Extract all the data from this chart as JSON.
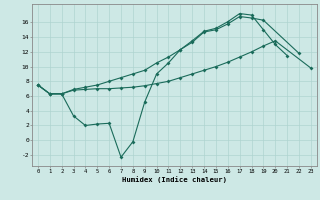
{
  "xlabel": "Humidex (Indice chaleur)",
  "background_color": "#cde8e5",
  "line_color": "#1a6b5a",
  "grid_color": "#afd4d0",
  "xlim": [
    -0.5,
    23.5
  ],
  "ylim": [
    -3.5,
    18.5
  ],
  "xticks": [
    0,
    1,
    2,
    3,
    4,
    5,
    6,
    7,
    8,
    9,
    10,
    11,
    12,
    13,
    14,
    15,
    16,
    17,
    18,
    19,
    20,
    21,
    22,
    23
  ],
  "yticks": [
    -2,
    0,
    2,
    4,
    6,
    8,
    10,
    12,
    14,
    16
  ],
  "line1_x": [
    0,
    1,
    2,
    3,
    4,
    5,
    6,
    7,
    8,
    9,
    10,
    11,
    12,
    13,
    14,
    15,
    16,
    17,
    18,
    19,
    20,
    21
  ],
  "line1_y": [
    7.5,
    6.3,
    6.3,
    3.3,
    2.0,
    2.2,
    2.3,
    -2.3,
    -0.2,
    5.2,
    9.0,
    10.5,
    12.3,
    13.5,
    14.8,
    15.2,
    16.1,
    17.2,
    17.0,
    15.0,
    13.0,
    11.5
  ],
  "line2_x": [
    0,
    1,
    2,
    3,
    4,
    5,
    6,
    7,
    8,
    9,
    10,
    11,
    12,
    13,
    14,
    15,
    16,
    17,
    18,
    19,
    20,
    23
  ],
  "line2_y": [
    7.5,
    6.3,
    6.3,
    6.8,
    6.9,
    7.0,
    7.0,
    7.1,
    7.2,
    7.4,
    7.7,
    8.0,
    8.5,
    9.0,
    9.5,
    10.0,
    10.6,
    11.3,
    12.0,
    12.8,
    13.5,
    9.8
  ],
  "line3_x": [
    0,
    1,
    2,
    3,
    4,
    5,
    6,
    7,
    8,
    9,
    10,
    11,
    12,
    13,
    14,
    15,
    16,
    17,
    18,
    19,
    22
  ],
  "line3_y": [
    7.5,
    6.3,
    6.3,
    6.9,
    7.2,
    7.5,
    8.0,
    8.5,
    9.0,
    9.5,
    10.5,
    11.3,
    12.3,
    13.3,
    14.7,
    15.0,
    15.8,
    16.8,
    16.6,
    16.3,
    11.8
  ]
}
